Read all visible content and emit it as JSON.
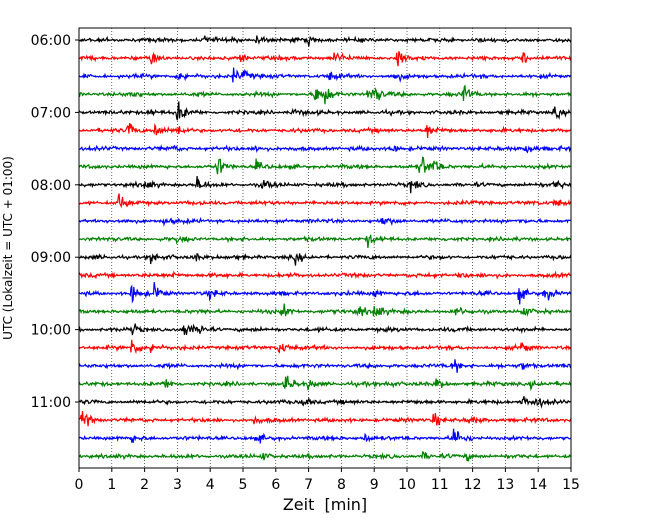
{
  "chart_data": {
    "type": "line",
    "title": "",
    "xlabel": "Zeit  [min]",
    "ylabel": "UTC (Lokalzeit = UTC + 01:00)",
    "xlim": [
      0,
      15
    ],
    "x_ticks": [
      "0",
      "1",
      "2",
      "3",
      "4",
      "5",
      "6",
      "7",
      "8",
      "9",
      "10",
      "11",
      "12",
      "13",
      "14",
      "15"
    ],
    "y_ticks": [
      "06:00",
      "07:00",
      "08:00",
      "09:00",
      "10:00",
      "11:00"
    ],
    "grid": "vertical dotted lines at each minute",
    "trace_colors": [
      "#000000",
      "#ff0000",
      "#0000ff",
      "#008000"
    ],
    "trace_start_times": [
      "06:00",
      "06:15",
      "06:30",
      "06:45",
      "07:00",
      "07:15",
      "07:30",
      "07:45",
      "08:00",
      "08:15",
      "08:30",
      "08:45",
      "09:00",
      "09:15",
      "09:30",
      "09:45",
      "10:00",
      "10:15",
      "10:30",
      "10:45",
      "11:00",
      "11:15",
      "11:30",
      "11:45"
    ],
    "events": [
      [
        [
          3.8,
          0.5
        ],
        [
          5.4,
          0.5
        ],
        [
          7.0,
          0.4
        ]
      ],
      [
        [
          2.2,
          0.7
        ],
        [
          4.9,
          0.6
        ],
        [
          7.8,
          0.9
        ],
        [
          9.7,
          1.2
        ],
        [
          13.5,
          0.8
        ]
      ],
      [
        [
          3.0,
          0.9
        ],
        [
          4.7,
          0.8
        ],
        [
          5.0,
          0.5
        ],
        [
          7.6,
          0.5
        ],
        [
          9.6,
          0.6
        ]
      ],
      [
        [
          1.6,
          0.5
        ],
        [
          7.2,
          1.1
        ],
        [
          7.5,
          0.9
        ],
        [
          8.8,
          0.8
        ],
        [
          9.0,
          0.9
        ],
        [
          11.7,
          1.2
        ]
      ],
      [
        [
          2.1,
          0.5
        ],
        [
          3.0,
          1.2
        ],
        [
          6.5,
          0.5
        ],
        [
          14.5,
          0.7
        ]
      ],
      [
        [
          1.5,
          1.0
        ],
        [
          2.3,
          0.9
        ],
        [
          3.0,
          0.6
        ],
        [
          10.6,
          0.9
        ]
      ],
      [
        [
          2.8,
          0.4
        ],
        [
          5.4,
          0.4
        ],
        [
          9.5,
          0.5
        ],
        [
          13.6,
          0.8
        ]
      ],
      [
        [
          4.2,
          1.3
        ],
        [
          5.4,
          0.6
        ],
        [
          10.4,
          1.7
        ],
        [
          10.8,
          0.9
        ]
      ],
      [
        [
          2.0,
          0.6
        ],
        [
          3.6,
          0.7
        ],
        [
          5.6,
          0.5
        ],
        [
          10.1,
          0.6
        ],
        [
          14.5,
          0.7
        ]
      ],
      [
        [
          1.2,
          1.1
        ],
        [
          14.5,
          0.6
        ]
      ],
      [
        [
          2.6,
          0.4
        ],
        [
          9.2,
          0.6
        ]
      ],
      [
        [
          3.0,
          0.3
        ],
        [
          8.8,
          0.7
        ]
      ],
      [
        [
          2.2,
          0.7
        ],
        [
          3.5,
          0.5
        ],
        [
          6.6,
          0.5
        ]
      ],
      [
        [
          2.8,
          0.3
        ],
        [
          11.6,
          0.4
        ]
      ],
      [
        [
          1.6,
          1.0
        ],
        [
          2.3,
          0.9
        ],
        [
          4.0,
          0.5
        ],
        [
          9.0,
          0.6
        ],
        [
          13.4,
          0.9
        ],
        [
          14.2,
          0.8
        ]
      ],
      [
        [
          6.2,
          0.8
        ],
        [
          8.5,
          0.8
        ],
        [
          9.0,
          1.2
        ],
        [
          11.5,
          0.5
        ],
        [
          13.5,
          0.6
        ]
      ],
      [
        [
          1.6,
          0.7
        ],
        [
          3.2,
          1.0
        ],
        [
          3.7,
          0.6
        ]
      ],
      [
        [
          1.6,
          1.2
        ],
        [
          2.2,
          0.7
        ],
        [
          6.1,
          0.9
        ],
        [
          13.5,
          0.7
        ]
      ],
      [
        [
          11.4,
          0.9
        ],
        [
          13.5,
          0.6
        ]
      ],
      [
        [
          2.6,
          0.6
        ],
        [
          6.3,
          1.0
        ],
        [
          7.0,
          0.6
        ],
        [
          9.4,
          0.6
        ],
        [
          10.9,
          0.6
        ],
        [
          13.8,
          0.5
        ]
      ],
      [
        [
          6.8,
          0.7
        ],
        [
          13.5,
          0.6
        ],
        [
          13.9,
          0.8
        ]
      ],
      [
        [
          0.1,
          1.1
        ],
        [
          5.3,
          0.5
        ],
        [
          10.8,
          0.9
        ],
        [
          11.9,
          0.4
        ]
      ],
      [
        [
          1.6,
          0.4
        ],
        [
          5.5,
          0.3
        ],
        [
          8.7,
          0.5
        ],
        [
          11.4,
          1.4
        ]
      ],
      [
        [
          5.6,
          0.4
        ],
        [
          10.5,
          0.5
        ],
        [
          11.8,
          0.4
        ]
      ]
    ]
  }
}
